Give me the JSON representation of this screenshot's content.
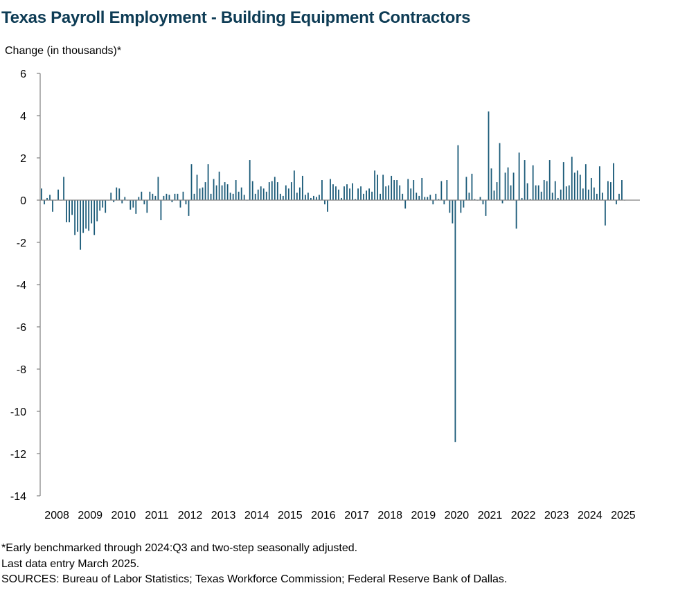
{
  "title": "Texas Payroll Employment - Building Equipment Contractors",
  "footnotes": {
    "note": "*Early benchmarked through 2024:Q3 and two-step seasonally adjusted.",
    "last_entry": "Last data entry March 2025.",
    "sources": "SOURCES: Bureau of Labor Statistics; Texas Workforce Commission; Federal Reserve Bank of Dallas."
  },
  "colors": {
    "bar": "#1a5a78",
    "title": "#0e3c55",
    "axis": "#808080"
  },
  "chart_data": {
    "type": "bar",
    "title": "Texas Payroll Employment - Building Equipment Contractors",
    "ylabel": "Change (in thousands)*",
    "xlabel": "",
    "ylim": [
      -14,
      6
    ],
    "yticks": [
      6,
      4,
      2,
      0,
      -2,
      -4,
      -6,
      -8,
      -10,
      -12,
      -14
    ],
    "x_tick_labels": [
      "2008",
      "2009",
      "2010",
      "2011",
      "2012",
      "2013",
      "2014",
      "2015",
      "2016",
      "2017",
      "2018",
      "2019",
      "2020",
      "2021",
      "2022",
      "2023",
      "2024",
      "2025"
    ],
    "start": "2008-01",
    "end": "2025-03",
    "grid": false,
    "legend": "none",
    "series": [
      {
        "frequency": "monthly",
        "values": [
          0.55,
          -0.2,
          0.1,
          0.25,
          -0.55,
          0.0,
          0.5,
          0.0,
          1.1,
          -1.05,
          -1.05,
          -0.7,
          -1.65,
          -1.5,
          -2.35,
          -1.55,
          -1.35,
          -1.45,
          -1.1,
          -1.65,
          -1.0,
          -0.5,
          -0.35,
          -0.6,
          0.0,
          0.35,
          -0.1,
          0.6,
          0.55,
          -0.15,
          0.15,
          0.0,
          -0.45,
          -0.35,
          -0.65,
          0.15,
          0.4,
          -0.2,
          -0.6,
          0.4,
          0.3,
          0.2,
          1.1,
          -0.95,
          0.2,
          0.3,
          0.25,
          -0.1,
          0.3,
          0.3,
          -0.35,
          0.4,
          -0.2,
          -0.75,
          1.7,
          0.3,
          1.2,
          0.55,
          0.6,
          0.85,
          1.7,
          0.3,
          1.0,
          0.7,
          1.35,
          0.7,
          0.85,
          0.75,
          0.35,
          0.3,
          0.95,
          0.4,
          0.6,
          0.25,
          0.0,
          1.9,
          0.9,
          0.3,
          0.5,
          0.65,
          0.55,
          0.4,
          0.85,
          0.9,
          1.1,
          0.85,
          0.3,
          0.2,
          0.7,
          0.55,
          0.85,
          1.4,
          0.35,
          0.6,
          1.15,
          0.25,
          0.35,
          0.1,
          0.2,
          0.15,
          0.25,
          0.95,
          -0.2,
          -0.55,
          1.0,
          0.75,
          0.65,
          0.5,
          0.1,
          0.65,
          0.75,
          0.55,
          0.8,
          0.05,
          0.55,
          0.65,
          0.3,
          0.45,
          0.55,
          0.4,
          1.4,
          1.2,
          0.3,
          1.2,
          0.65,
          0.7,
          1.15,
          0.95,
          0.95,
          0.7,
          0.3,
          -0.4,
          1.0,
          0.55,
          0.95,
          0.35,
          0.2,
          1.05,
          0.15,
          0.15,
          0.25,
          -0.2,
          0.3,
          0.05,
          0.9,
          -0.2,
          0.95,
          -0.6,
          -1.1,
          -11.45,
          2.6,
          -0.6,
          -0.35,
          1.1,
          0.35,
          1.25,
          0.05,
          0.0,
          0.15,
          -0.2,
          -0.75,
          4.2,
          1.5,
          0.45,
          0.85,
          2.7,
          -0.15,
          1.3,
          1.55,
          0.7,
          1.3,
          -1.35,
          2.25,
          0.1,
          1.9,
          0.8,
          0.05,
          1.65,
          0.7,
          0.7,
          0.4,
          0.95,
          0.9,
          1.9,
          0.35,
          0.9,
          0.1,
          0.5,
          1.8,
          0.65,
          0.7,
          2.05,
          1.3,
          1.4,
          1.2,
          0.55,
          1.7,
          0.5,
          1.05,
          0.6,
          0.3,
          1.6,
          0.35,
          -1.2,
          0.9,
          0.85,
          1.75,
          -0.2,
          0.3,
          0.95,
          0.0
        ]
      }
    ]
  }
}
